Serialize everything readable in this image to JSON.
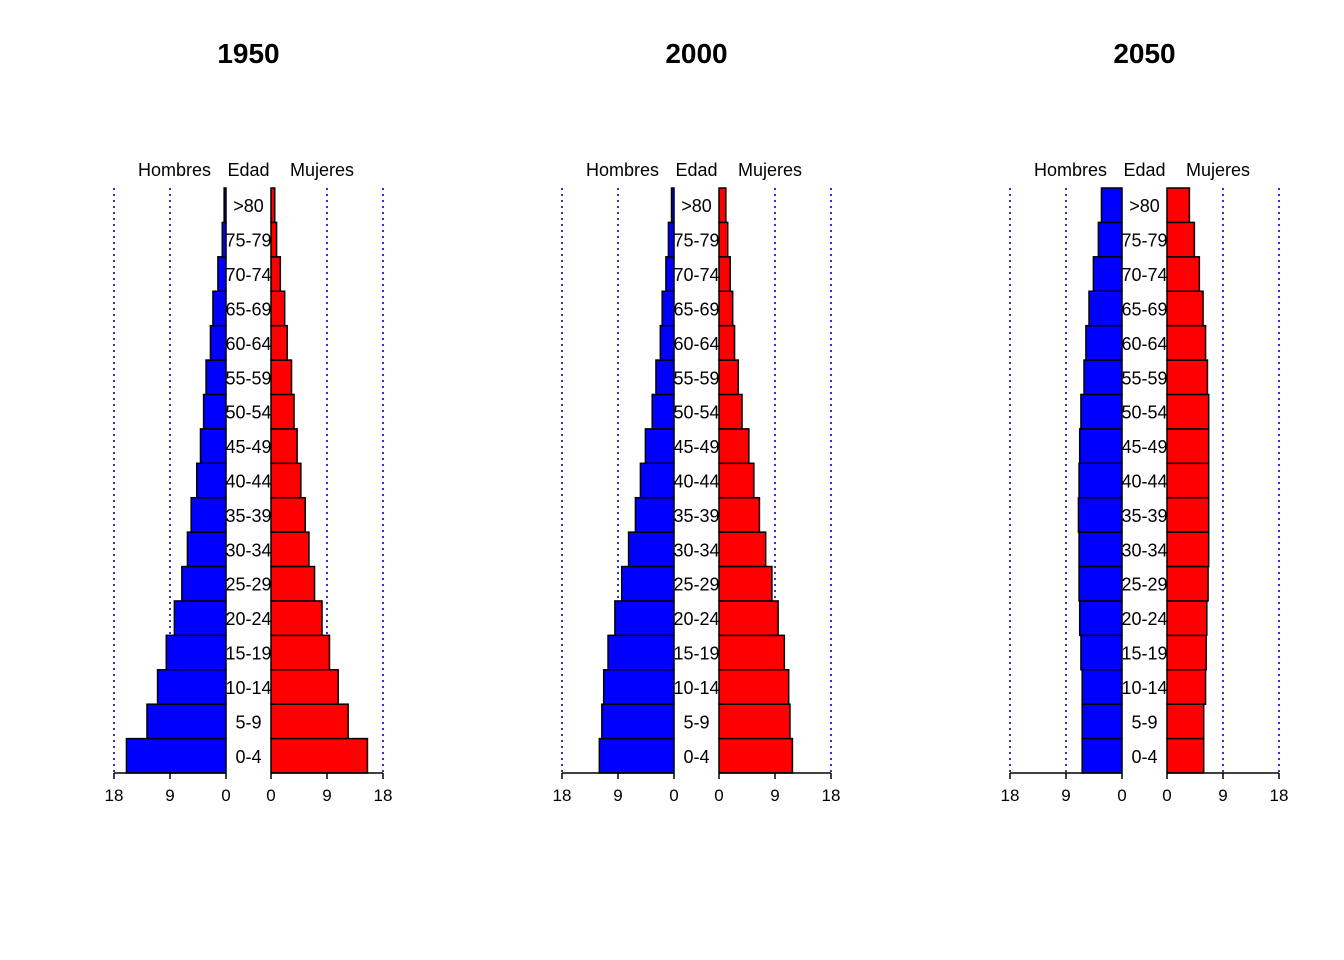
{
  "chart_data": [
    {
      "type": "bar",
      "title": "1950",
      "left_label": "Hombres",
      "center_label": "Edad",
      "right_label": "Mujeres",
      "categories": [
        "0-4",
        "5-9",
        "10-14",
        "15-19",
        "20-24",
        "25-29",
        "30-34",
        "35-39",
        "40-44",
        "45-49",
        "50-54",
        "55-59",
        "60-64",
        "65-69",
        "70-74",
        "75-79",
        ">80"
      ],
      "series": [
        {
          "name": "Hombres",
          "values": [
            16.0,
            12.7,
            11.0,
            9.6,
            8.3,
            7.1,
            6.2,
            5.6,
            4.7,
            4.1,
            3.6,
            3.2,
            2.5,
            2.1,
            1.3,
            0.6,
            0.3
          ]
        },
        {
          "name": "Mujeres",
          "values": [
            15.5,
            12.4,
            10.8,
            9.4,
            8.2,
            7.0,
            6.1,
            5.5,
            4.8,
            4.2,
            3.7,
            3.3,
            2.6,
            2.2,
            1.5,
            0.9,
            0.6
          ]
        }
      ],
      "ticks": [
        18,
        9,
        0
      ],
      "xlim": [
        0,
        18
      ],
      "grid": "dotted vertical lines at 9 and 18"
    },
    {
      "type": "bar",
      "title": "2000",
      "left_label": "Hombres",
      "center_label": "Edad",
      "right_label": "Mujeres",
      "categories": [
        "0-4",
        "5-9",
        "10-14",
        "15-19",
        "20-24",
        "25-29",
        "30-34",
        "35-39",
        "40-44",
        "45-49",
        "50-54",
        "55-59",
        "60-64",
        "65-69",
        "70-74",
        "75-79",
        ">80"
      ],
      "series": [
        {
          "name": "Hombres",
          "values": [
            12.0,
            11.6,
            11.3,
            10.6,
            9.5,
            8.4,
            7.3,
            6.2,
            5.4,
            4.6,
            3.5,
            2.9,
            2.2,
            1.9,
            1.3,
            0.9,
            0.4
          ]
        },
        {
          "name": "Mujeres",
          "values": [
            11.8,
            11.4,
            11.2,
            10.5,
            9.5,
            8.5,
            7.5,
            6.5,
            5.6,
            4.8,
            3.7,
            3.1,
            2.5,
            2.2,
            1.8,
            1.4,
            1.1
          ]
        }
      ],
      "ticks": [
        18,
        9,
        0
      ],
      "xlim": [
        0,
        18
      ],
      "grid": "dotted vertical lines at 9 and 18"
    },
    {
      "type": "bar",
      "title": "2050",
      "left_label": "Hombres",
      "center_label": "Edad",
      "right_label": "Mujeres",
      "categories": [
        "0-4",
        "5-9",
        "10-14",
        "15-19",
        "20-24",
        "25-29",
        "30-34",
        "35-39",
        "40-44",
        "45-49",
        "50-54",
        "55-59",
        "60-64",
        "65-69",
        "70-74",
        "75-79",
        ">80"
      ],
      "series": [
        {
          "name": "Hombres",
          "values": [
            6.4,
            6.4,
            6.4,
            6.6,
            6.8,
            6.9,
            6.9,
            7.0,
            6.9,
            6.8,
            6.6,
            6.1,
            5.8,
            5.3,
            4.6,
            3.8,
            3.3
          ]
        },
        {
          "name": "Mujeres",
          "values": [
            5.9,
            5.9,
            6.2,
            6.3,
            6.4,
            6.6,
            6.7,
            6.7,
            6.7,
            6.7,
            6.7,
            6.5,
            6.2,
            5.8,
            5.2,
            4.4,
            3.6
          ]
        }
      ],
      "ticks": [
        18,
        9,
        0
      ],
      "xlim": [
        0,
        18
      ],
      "grid": "dotted vertical lines at 9 and 18"
    }
  ],
  "colors": {
    "male": "#0000ff",
    "female": "#ff0000",
    "grid": "#0000cd",
    "outline": "#000000"
  }
}
